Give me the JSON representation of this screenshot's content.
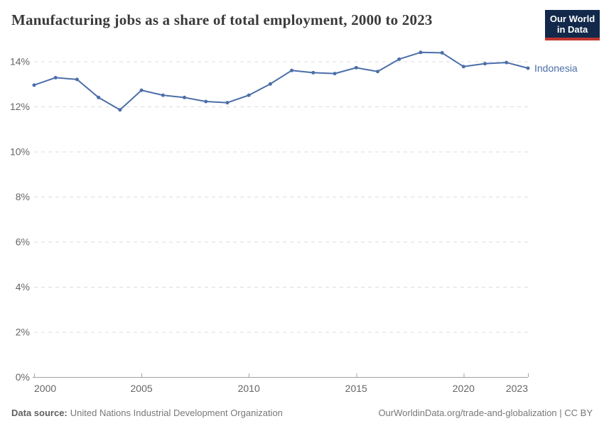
{
  "header": {
    "title": "Manufacturing jobs as a share of total employment, 2000 to 2023",
    "logo": {
      "line1": "Our World",
      "line2": "in Data"
    }
  },
  "footer": {
    "datasource_label": "Data source:",
    "datasource_value": "United Nations Industrial Development Organization",
    "attribution": "OurWorldinData.org/trade-and-globalization | CC BY"
  },
  "colors": {
    "line": "#4c6ea9",
    "grid": "#dddddd",
    "axis": "#a1a1a1",
    "tick_text": "#666666",
    "title_text": "#3a3a3a",
    "logo_bg": "#12294b",
    "logo_accent": "#bf362e"
  },
  "chart_data": {
    "type": "line",
    "title": "Manufacturing jobs as a share of total employment, 2000 to 2023",
    "entity": "Indonesia",
    "xlabel": "",
    "ylabel": "",
    "x": [
      2000,
      2001,
      2002,
      2003,
      2004,
      2005,
      2006,
      2007,
      2008,
      2009,
      2010,
      2011,
      2012,
      2013,
      2014,
      2015,
      2016,
      2017,
      2018,
      2019,
      2020,
      2021,
      2022,
      2023
    ],
    "values": [
      12.95,
      13.28,
      13.2,
      12.4,
      11.85,
      12.72,
      12.5,
      12.4,
      12.22,
      12.17,
      12.5,
      13.0,
      13.6,
      13.5,
      13.46,
      13.72,
      13.55,
      14.1,
      14.4,
      14.38,
      13.77,
      13.9,
      13.95,
      13.7
    ],
    "unit": "%",
    "xlim": [
      2000,
      2023
    ],
    "ylim": [
      0,
      15
    ],
    "xticks": [
      "2000",
      "2005",
      "2010",
      "2015",
      "2020",
      "2023"
    ],
    "xtick_years": [
      2000,
      2005,
      2010,
      2015,
      2020,
      2023
    ],
    "yticks": [
      "0%",
      "2%",
      "4%",
      "6%",
      "8%",
      "10%",
      "12%",
      "14%"
    ],
    "ytick_values": [
      0,
      2,
      4,
      6,
      8,
      10,
      12,
      14
    ],
    "grid": "horizontal-dashed",
    "legend_position": "end-of-line-label"
  }
}
